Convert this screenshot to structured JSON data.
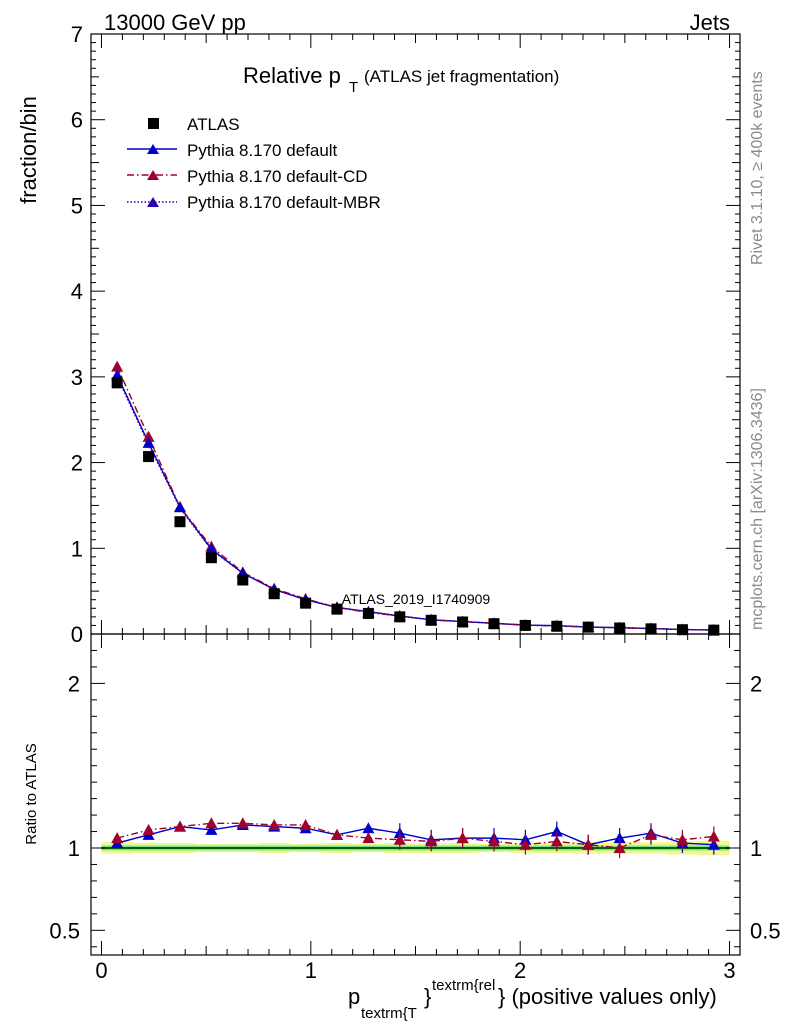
{
  "header": {
    "left": "13000 GeV pp",
    "right": "Jets"
  },
  "side": {
    "rivet": "Rivet 3.1.10, ≥ 400k events",
    "mcplots": "mcplots.cern.ch [arXiv:1306.3436]"
  },
  "chart_data": {
    "type": "line",
    "title_main": "Relative p",
    "title_sub": "T",
    "title_rest": "(ATLAS jet fragmentation)",
    "watermark": "ATLAS_2019_I1740909",
    "xlabel_main": "p",
    "xlabel_sub": "textrm{T",
    "xlabel_sup": "textrm{rel",
    "xlabel_brace": "}",
    "xlabel_rest": "} (positive values only)",
    "ylabel_top": "fraction/bin",
    "ylabel_bottom": "Ratio to ATLAS",
    "xlim": [
      -0.05,
      3.05
    ],
    "ylim_top": [
      0,
      7
    ],
    "ylim_bottom": [
      0.35,
      2.3
    ],
    "x_ticks": [
      "0",
      "1",
      "2",
      "3"
    ],
    "y_ticks_top": [
      "0",
      "1",
      "2",
      "3",
      "4",
      "5",
      "6",
      "7"
    ],
    "y_ticks_bottom": [
      "0.5",
      "1",
      "2"
    ],
    "x": [
      0.075,
      0.225,
      0.375,
      0.525,
      0.675,
      0.825,
      0.975,
      1.125,
      1.275,
      1.425,
      1.575,
      1.725,
      1.875,
      2.025,
      2.175,
      2.325,
      2.475,
      2.625,
      2.775,
      2.925
    ],
    "series": [
      {
        "name": "ATLAS",
        "style": "data",
        "values": [
          2.93,
          2.07,
          1.31,
          0.89,
          0.63,
          0.47,
          0.36,
          0.29,
          0.24,
          0.2,
          0.16,
          0.14,
          0.12,
          0.1,
          0.09,
          0.08,
          0.07,
          0.06,
          0.05,
          0.045
        ]
      },
      {
        "name": "Pythia 8.170 default",
        "style": "solid",
        "values": [
          3.02,
          2.23,
          1.48,
          0.99,
          0.71,
          0.52,
          0.4,
          0.31,
          0.26,
          0.21,
          0.165,
          0.145,
          0.125,
          0.104,
          0.097,
          0.081,
          0.074,
          0.064,
          0.052,
          0.046
        ]
      },
      {
        "name": "Pythia 8.170 default-CD",
        "style": "dashdot",
        "values": [
          3.12,
          2.3,
          1.48,
          1.02,
          0.72,
          0.53,
          0.41,
          0.31,
          0.25,
          0.21,
          0.164,
          0.145,
          0.124,
          0.102,
          0.093,
          0.081,
          0.07,
          0.064,
          0.052,
          0.047
        ]
      },
      {
        "name": "Pythia 8.170 default-MBR",
        "style": "dotted",
        "values": [
          3.0,
          2.21,
          1.47,
          0.98,
          0.71,
          0.52,
          0.4,
          0.31,
          0.26,
          0.21,
          0.166,
          0.146,
          0.126,
          0.104,
          0.098,
          0.082,
          0.075,
          0.065,
          0.053,
          0.046
        ]
      }
    ],
    "ratio": [
      {
        "name": "Pythia 8.170 default",
        "style": "solid",
        "values": [
          1.03,
          1.08,
          1.13,
          1.11,
          1.14,
          1.13,
          1.12,
          1.08,
          1.12,
          1.09,
          1.05,
          1.06,
          1.06,
          1.05,
          1.1,
          1.02,
          1.06,
          1.09,
          1.03,
          1.02
        ]
      },
      {
        "name": "Pythia 8.170 default-CD",
        "style": "dashdot",
        "values": [
          1.06,
          1.11,
          1.13,
          1.15,
          1.15,
          1.14,
          1.14,
          1.08,
          1.06,
          1.05,
          1.04,
          1.06,
          1.04,
          1.02,
          1.04,
          1.02,
          1.0,
          1.08,
          1.05,
          1.07
        ]
      }
    ],
    "ratio_band_green": 0.015,
    "ratio_band_yellow": [
      0.035,
      0.03,
      0.03,
      0.025,
      0.025,
      0.03,
      0.025,
      0.03,
      0.025,
      0.03,
      0.03,
      0.03,
      0.025,
      0.03,
      0.03,
      0.035,
      0.035,
      0.035,
      0.04,
      0.045
    ],
    "colors": {
      "data": "#000000",
      "default": "#0000cc",
      "cd": "#a0002c",
      "mbr": "#2a00a8",
      "band_yellow": "#f4f68f",
      "band_green": "#7ee08a",
      "refline": "#006400"
    }
  }
}
